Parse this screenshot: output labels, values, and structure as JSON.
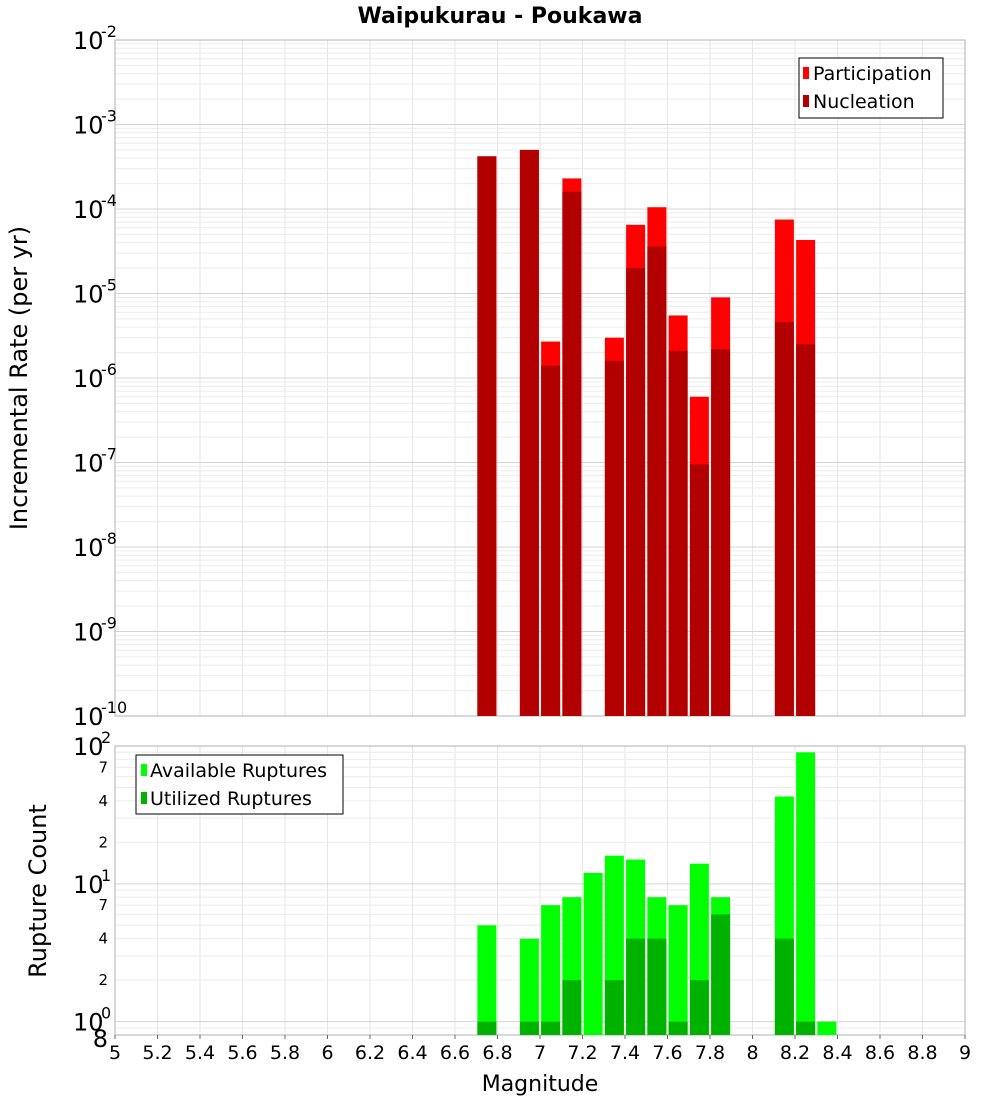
{
  "chart_data": [
    {
      "type": "bar",
      "title": "Waipukurau - Poukawa",
      "ylabel": "Incremental Rate (per yr)",
      "xlabel": "",
      "yscale": "log",
      "ylim": [
        1e-10,
        0.01
      ],
      "xlim": [
        5,
        9
      ],
      "y_tick_labels": [
        {
          "base": "10",
          "exp": "-10"
        },
        {
          "base": "10",
          "exp": "-9"
        },
        {
          "base": "10",
          "exp": "-8"
        },
        {
          "base": "10",
          "exp": "-7"
        },
        {
          "base": "10",
          "exp": "-6"
        },
        {
          "base": "10",
          "exp": "-5"
        },
        {
          "base": "10",
          "exp": "-4"
        },
        {
          "base": "10",
          "exp": "-3"
        },
        {
          "base": "10",
          "exp": "-2"
        }
      ],
      "legend_position": "top-right",
      "series": [
        {
          "name": "Participation",
          "color": "#ff0000",
          "x": [
            6.75,
            6.95,
            7.05,
            7.15,
            7.35,
            7.45,
            7.55,
            7.65,
            7.75,
            7.85,
            8.15,
            8.25
          ],
          "values": [
            0.00042,
            0.0005,
            2.7e-06,
            0.00023,
            3e-06,
            6.5e-05,
            0.000105,
            5.5e-06,
            6e-07,
            9e-06,
            7.5e-05,
            4.3e-05
          ]
        },
        {
          "name": "Nucleation",
          "color": "#b20000",
          "x": [
            6.75,
            6.95,
            7.05,
            7.15,
            7.35,
            7.45,
            7.55,
            7.65,
            7.75,
            7.85,
            8.15,
            8.25
          ],
          "values": [
            0.00042,
            0.0005,
            1.4e-06,
            0.00016,
            1.6e-06,
            2e-05,
            3.6e-05,
            2.1e-06,
            9.5e-08,
            2.2e-06,
            4.6e-06,
            2.5e-06
          ]
        }
      ]
    },
    {
      "type": "bar",
      "title": "",
      "ylabel": "Rupture Count",
      "xlabel": "Magnitude",
      "yscale": "log",
      "ylim": [
        0.8,
        100
      ],
      "xlim": [
        5,
        9
      ],
      "x_ticks": [
        "5",
        "5.2",
        "5.4",
        "5.6",
        "5.8",
        "6",
        "6.2",
        "6.4",
        "6.6",
        "6.8",
        "7",
        "7.2",
        "7.4",
        "7.6",
        "7.8",
        "8",
        "8.2",
        "8.4",
        "8.6",
        "8.8",
        "9"
      ],
      "y_major_labels": [
        {
          "base": "10",
          "exp": "0"
        },
        {
          "base": "10",
          "exp": "1"
        },
        {
          "base": "10",
          "exp": "2"
        }
      ],
      "y_minor_labels": [
        "8",
        "2",
        "4",
        "7",
        "2",
        "4",
        "7"
      ],
      "legend_position": "top-left",
      "series": [
        {
          "name": "Available Ruptures",
          "color": "#00ff00",
          "x": [
            6.75,
            6.95,
            7.05,
            7.15,
            7.25,
            7.35,
            7.45,
            7.55,
            7.65,
            7.75,
            7.85,
            8.15,
            8.25,
            8.35
          ],
          "values": [
            5,
            4,
            7,
            8,
            12,
            16,
            15,
            8,
            7,
            14,
            8,
            43,
            90,
            1
          ]
        },
        {
          "name": "Utilized Ruptures",
          "color": "#00b200",
          "x": [
            6.75,
            6.95,
            7.05,
            7.15,
            7.35,
            7.45,
            7.55,
            7.65,
            7.75,
            7.85,
            8.15,
            8.25
          ],
          "values": [
            1,
            1,
            1,
            2,
            2,
            4,
            4,
            1,
            2,
            6,
            4,
            1
          ]
        }
      ]
    }
  ]
}
